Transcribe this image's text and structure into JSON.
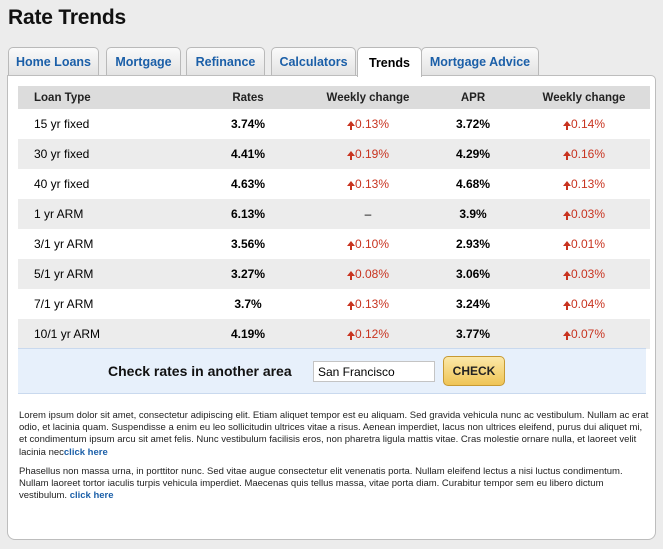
{
  "page": {
    "title": "Rate Trends"
  },
  "tabs": [
    {
      "label": "Home Loans",
      "active": false
    },
    {
      "label": "Mortgage",
      "active": false
    },
    {
      "label": "Refinance",
      "active": false
    },
    {
      "label": "Calculators",
      "active": false
    },
    {
      "label": "Trends",
      "active": true
    },
    {
      "label": "Mortgage Advice",
      "active": false
    }
  ],
  "table": {
    "headers": [
      "Loan Type",
      "Rates",
      "Weekly change",
      "APR",
      "Weekly change"
    ],
    "rows": [
      {
        "type": "15 yr fixed",
        "rate": "3.74%",
        "rate_change": "0.13%",
        "apr": "3.72%",
        "apr_change": "0.14%"
      },
      {
        "type": "30 yr fixed",
        "rate": "4.41%",
        "rate_change": "0.19%",
        "apr": "4.29%",
        "apr_change": "0.16%"
      },
      {
        "type": "40 yr fixed",
        "rate": "4.63%",
        "rate_change": "0.13%",
        "apr": "4.68%",
        "apr_change": "0.13%"
      },
      {
        "type": "1 yr ARM",
        "rate": "6.13%",
        "rate_change": "–",
        "apr": "3.9%",
        "apr_change": "0.03%"
      },
      {
        "type": "3/1 yr ARM",
        "rate": "3.56%",
        "rate_change": "0.10%",
        "apr": "2.93%",
        "apr_change": "0.01%"
      },
      {
        "type": "5/1 yr ARM",
        "rate": "3.27%",
        "rate_change": "0.08%",
        "apr": "3.06%",
        "apr_change": "0.03%"
      },
      {
        "type": "7/1 yr ARM",
        "rate": "3.7%",
        "rate_change": "0.13%",
        "apr": "3.24%",
        "apr_change": "0.04%"
      },
      {
        "type": "10/1 yr ARM",
        "rate": "4.19%",
        "rate_change": "0.12%",
        "apr": "3.77%",
        "apr_change": "0.07%"
      }
    ]
  },
  "check": {
    "label": "Check rates in another area",
    "location_value": "San Francisco",
    "button_label": "CHECK"
  },
  "paragraphs": [
    {
      "text": "Lorem ipsum dolor sit amet, consectetur adipiscing elit. Etiam aliquet tempor est eu aliquam. Sed gravida vehicula nunc ac vestibulum. Nullam ac erat odio, et lacinia quam. Suspendisse a enim eu leo sollicitudin ultrices vitae a risus. Aenean imperdiet, lacus non ultrices eleifend, purus dui aliquet mi, et condimentum ipsum arcu sit amet felis. Nunc vestibulum facilisis eros, non pharetra ligula mattis vitae. Cras molestie ornare nulla, et laoreet velit lacinia nec",
      "link": "click here"
    },
    {
      "text": "Phasellus non massa urna, in porttitor nunc. Sed vitae augue consectetur elit venenatis porta. Nullam eleifend lectus a nisi luctus condimentum. Nullam laoreet tortor iaculis turpis vehicula imperdiet. Maecenas quis tellus massa, vitae porta diam. Curabitur tempor sem eu libero dictum vestibulum. ",
      "link": "click here"
    }
  ],
  "colors": {
    "accent": "#1b5fa8",
    "change_up": "#c8331f",
    "check_button": "#efc455"
  }
}
